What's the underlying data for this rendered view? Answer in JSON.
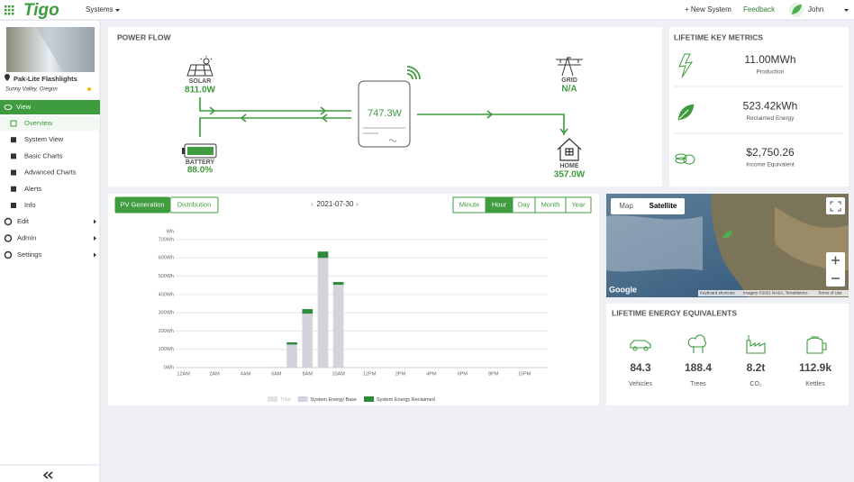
{
  "header": {
    "logo": "Tigo",
    "systems_menu": "Systems",
    "new_system": "+ New System",
    "feedback": "Feedback",
    "user": "John"
  },
  "sidebar": {
    "system_name": "Pak-Lite Flashlights",
    "location": "Sunny Valley, Oregon",
    "view": "View",
    "view_items": [
      "Overview",
      "System View",
      "Basic Charts",
      "Advanced Charts",
      "Alerts",
      "Info"
    ],
    "sections": [
      "Edit",
      "Admin",
      "Settings"
    ]
  },
  "power_flow": {
    "title": "POWER FLOW",
    "solar": {
      "label": "SOLAR",
      "value": "811.0W"
    },
    "grid": {
      "label": "GRID",
      "value": "N/A"
    },
    "inverter": {
      "value": "747.3W"
    },
    "battery": {
      "label": "BATTERY",
      "value": "88.0%"
    },
    "home": {
      "label": "HOME",
      "value": "357.0W"
    }
  },
  "key_metrics": {
    "title": "LIFETIME KEY METRICS",
    "items": [
      {
        "value": "11.00MWh",
        "label": "Production"
      },
      {
        "value": "523.42kWh",
        "label": "Reclaimed Energy"
      },
      {
        "value": "$2,750.26",
        "label": "Income Equivalent"
      }
    ]
  },
  "chart_controls": {
    "tabs": [
      "PV Generation",
      "Distribution"
    ],
    "date": "2021-07-30",
    "ranges": [
      "Minute",
      "Hour",
      "Day",
      "Month",
      "Year"
    ],
    "active_range": "Hour"
  },
  "chart_data": {
    "type": "bar",
    "stacked": true,
    "y_unit": "Wh",
    "categories": [
      "12AM",
      null,
      "2AM",
      null,
      "4AM",
      null,
      "6AM",
      null,
      "8AM",
      null,
      "10AM",
      null,
      "12PM",
      null,
      "2PM",
      null,
      "4PM",
      null,
      "6PM",
      null,
      "8PM",
      null,
      "10PM",
      null
    ],
    "series": [
      {
        "name": "Total",
        "color": "#cfcfcf",
        "visible": false
      },
      {
        "name": "System Energy Base",
        "color": "#d3d3de",
        "values": [
          0,
          0,
          0,
          0,
          0,
          0,
          3,
          126,
          295,
          600,
          453,
          0,
          0,
          0,
          0,
          0,
          0,
          0,
          0,
          0,
          0,
          0,
          0,
          0
        ]
      },
      {
        "name": "System Energy Reclaimed",
        "color": "#2e8b3e",
        "values": [
          0,
          0,
          0,
          0,
          0,
          0,
          0,
          12,
          25,
          35,
          15,
          0,
          0,
          0,
          0,
          0,
          0,
          0,
          0,
          0,
          0,
          0,
          0,
          0
        ]
      }
    ],
    "ylim": [
      0,
      700
    ],
    "yticks": [
      {
        "value": 0,
        "label": "0Wh"
      },
      {
        "value": 100,
        "label": "100Wh"
      },
      {
        "value": 200,
        "label": "200Wh"
      },
      {
        "value": 300,
        "label": "300Wh"
      },
      {
        "value": 400,
        "label": "400Wh"
      },
      {
        "value": 500,
        "label": "500Wh"
      },
      {
        "value": 600,
        "label": "600Wh"
      },
      {
        "value": 700,
        "label": "700Wh"
      }
    ],
    "grid": true
  },
  "map": {
    "tabs": [
      "Map",
      "Satellite"
    ],
    "active_tab": "Satellite",
    "brand": "Google",
    "attribution": [
      "Keyboard shortcuts",
      "Imagery ©2021 NASA, TerraMetrics",
      "Terms of Use"
    ]
  },
  "equivalents": {
    "title": "LIFETIME ENERGY EQUIVALENTS",
    "items": [
      {
        "value": "84.3",
        "label": "Vehicles"
      },
      {
        "value": "188.4",
        "label": "Trees"
      },
      {
        "value": "8.2t",
        "label": "CO₂"
      },
      {
        "value": "112.9k",
        "label": "Kettles"
      }
    ]
  }
}
